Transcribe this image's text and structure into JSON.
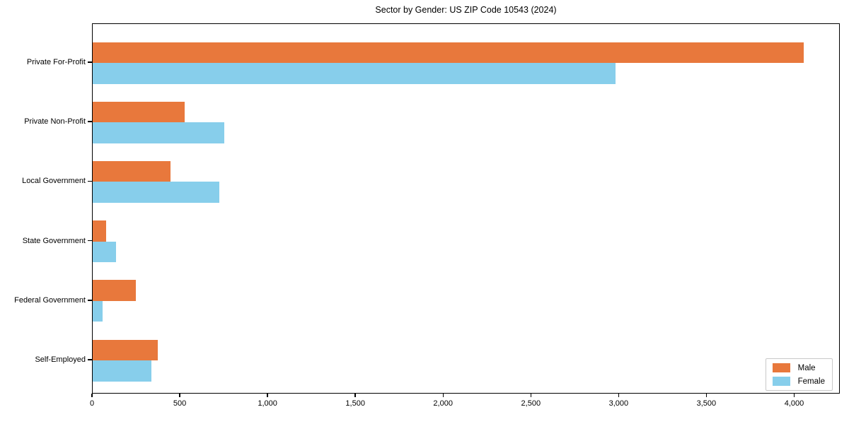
{
  "title": "Sector by Gender: US ZIP Code 10543 (2024)",
  "chart_data": {
    "type": "bar",
    "orientation": "horizontal",
    "title": "Sector by Gender: US ZIP Code 10543 (2024)",
    "xlabel": "",
    "ylabel": "",
    "categories": [
      "Private For-Profit",
      "Private Non-Profit",
      "Local Government",
      "State Government",
      "Federal Government",
      "Self-Employed"
    ],
    "series": [
      {
        "name": "Male",
        "color": "#e8783c",
        "values": [
          4050,
          525,
          445,
          77,
          246,
          370
        ]
      },
      {
        "name": "Female",
        "color": "#87ceeb",
        "values": [
          2980,
          750,
          720,
          133,
          57,
          335
        ]
      }
    ],
    "xlim": [
      0,
      4260
    ],
    "xticks": [
      0,
      500,
      1000,
      1500,
      2000,
      2500,
      3000,
      3500,
      4000
    ],
    "xtick_labels": [
      "0",
      "500",
      "1,000",
      "1,500",
      "2,000",
      "2,500",
      "3,000",
      "3,500",
      "4,000"
    ],
    "grid": false,
    "legend": {
      "position": "lower right",
      "entries": [
        "Male",
        "Female"
      ]
    }
  }
}
